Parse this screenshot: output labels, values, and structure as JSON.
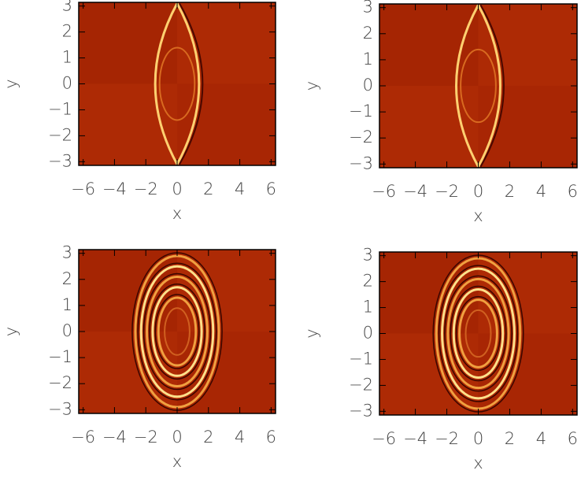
{
  "chart_data": [
    {
      "type": "heatmap",
      "xlabel": "x",
      "ylabel": "y",
      "xlim": [
        -6.283,
        6.283
      ],
      "ylim": [
        -3.1416,
        3.1416
      ],
      "xticks": [
        {
          "value": -6,
          "label": "−6"
        },
        {
          "value": -4,
          "label": "−4"
        },
        {
          "value": -2,
          "label": "−2"
        },
        0,
        2,
        4,
        6
      ],
      "yticks": [
        {
          "value": -3,
          "label": "−3"
        },
        {
          "value": -2,
          "label": "−2"
        },
        {
          "value": -1,
          "label": "−1"
        },
        0,
        1,
        2,
        3
      ]
    },
    {
      "type": "heatmap",
      "xlabel": "x",
      "ylabel": "y",
      "xlim": [
        -6.283,
        6.283
      ],
      "ylim": [
        -3.1416,
        3.1416
      ],
      "xticks": [
        {
          "value": -6,
          "label": "−6"
        },
        {
          "value": -4,
          "label": "−4"
        },
        {
          "value": -2,
          "label": "−2"
        },
        0,
        2,
        4,
        6
      ],
      "yticks": [
        {
          "value": -3,
          "label": "−3"
        },
        {
          "value": -2,
          "label": "−2"
        },
        {
          "value": -1,
          "label": "−1"
        },
        0,
        1,
        2,
        3
      ]
    },
    {
      "type": "heatmap",
      "xlabel": "x",
      "ylabel": "y",
      "xlim": [
        -6.283,
        6.283
      ],
      "ylim": [
        -3.1416,
        3.1416
      ],
      "xticks": [
        {
          "value": -6,
          "label": "−6"
        },
        {
          "value": -4,
          "label": "−4"
        },
        {
          "value": -2,
          "label": "−2"
        },
        0,
        2,
        4,
        6
      ],
      "yticks": [
        {
          "value": -3,
          "label": "−3"
        },
        {
          "value": -2,
          "label": "−2"
        },
        {
          "value": -1,
          "label": "−1"
        },
        0,
        1,
        2,
        3
      ]
    },
    {
      "type": "heatmap",
      "xlabel": "x",
      "ylabel": "y",
      "xlim": [
        -6.283,
        6.283
      ],
      "ylim": [
        -3.1416,
        3.1416
      ],
      "xticks": [
        {
          "value": -6,
          "label": "−6"
        },
        {
          "value": -4,
          "label": "−4"
        },
        {
          "value": -2,
          "label": "−2"
        },
        0,
        2,
        4,
        6
      ],
      "yticks": [
        {
          "value": -3,
          "label": "−3"
        },
        {
          "value": -2,
          "label": "−2"
        },
        {
          "value": -1,
          "label": "−1"
        },
        0,
        1,
        2,
        3
      ]
    }
  ]
}
